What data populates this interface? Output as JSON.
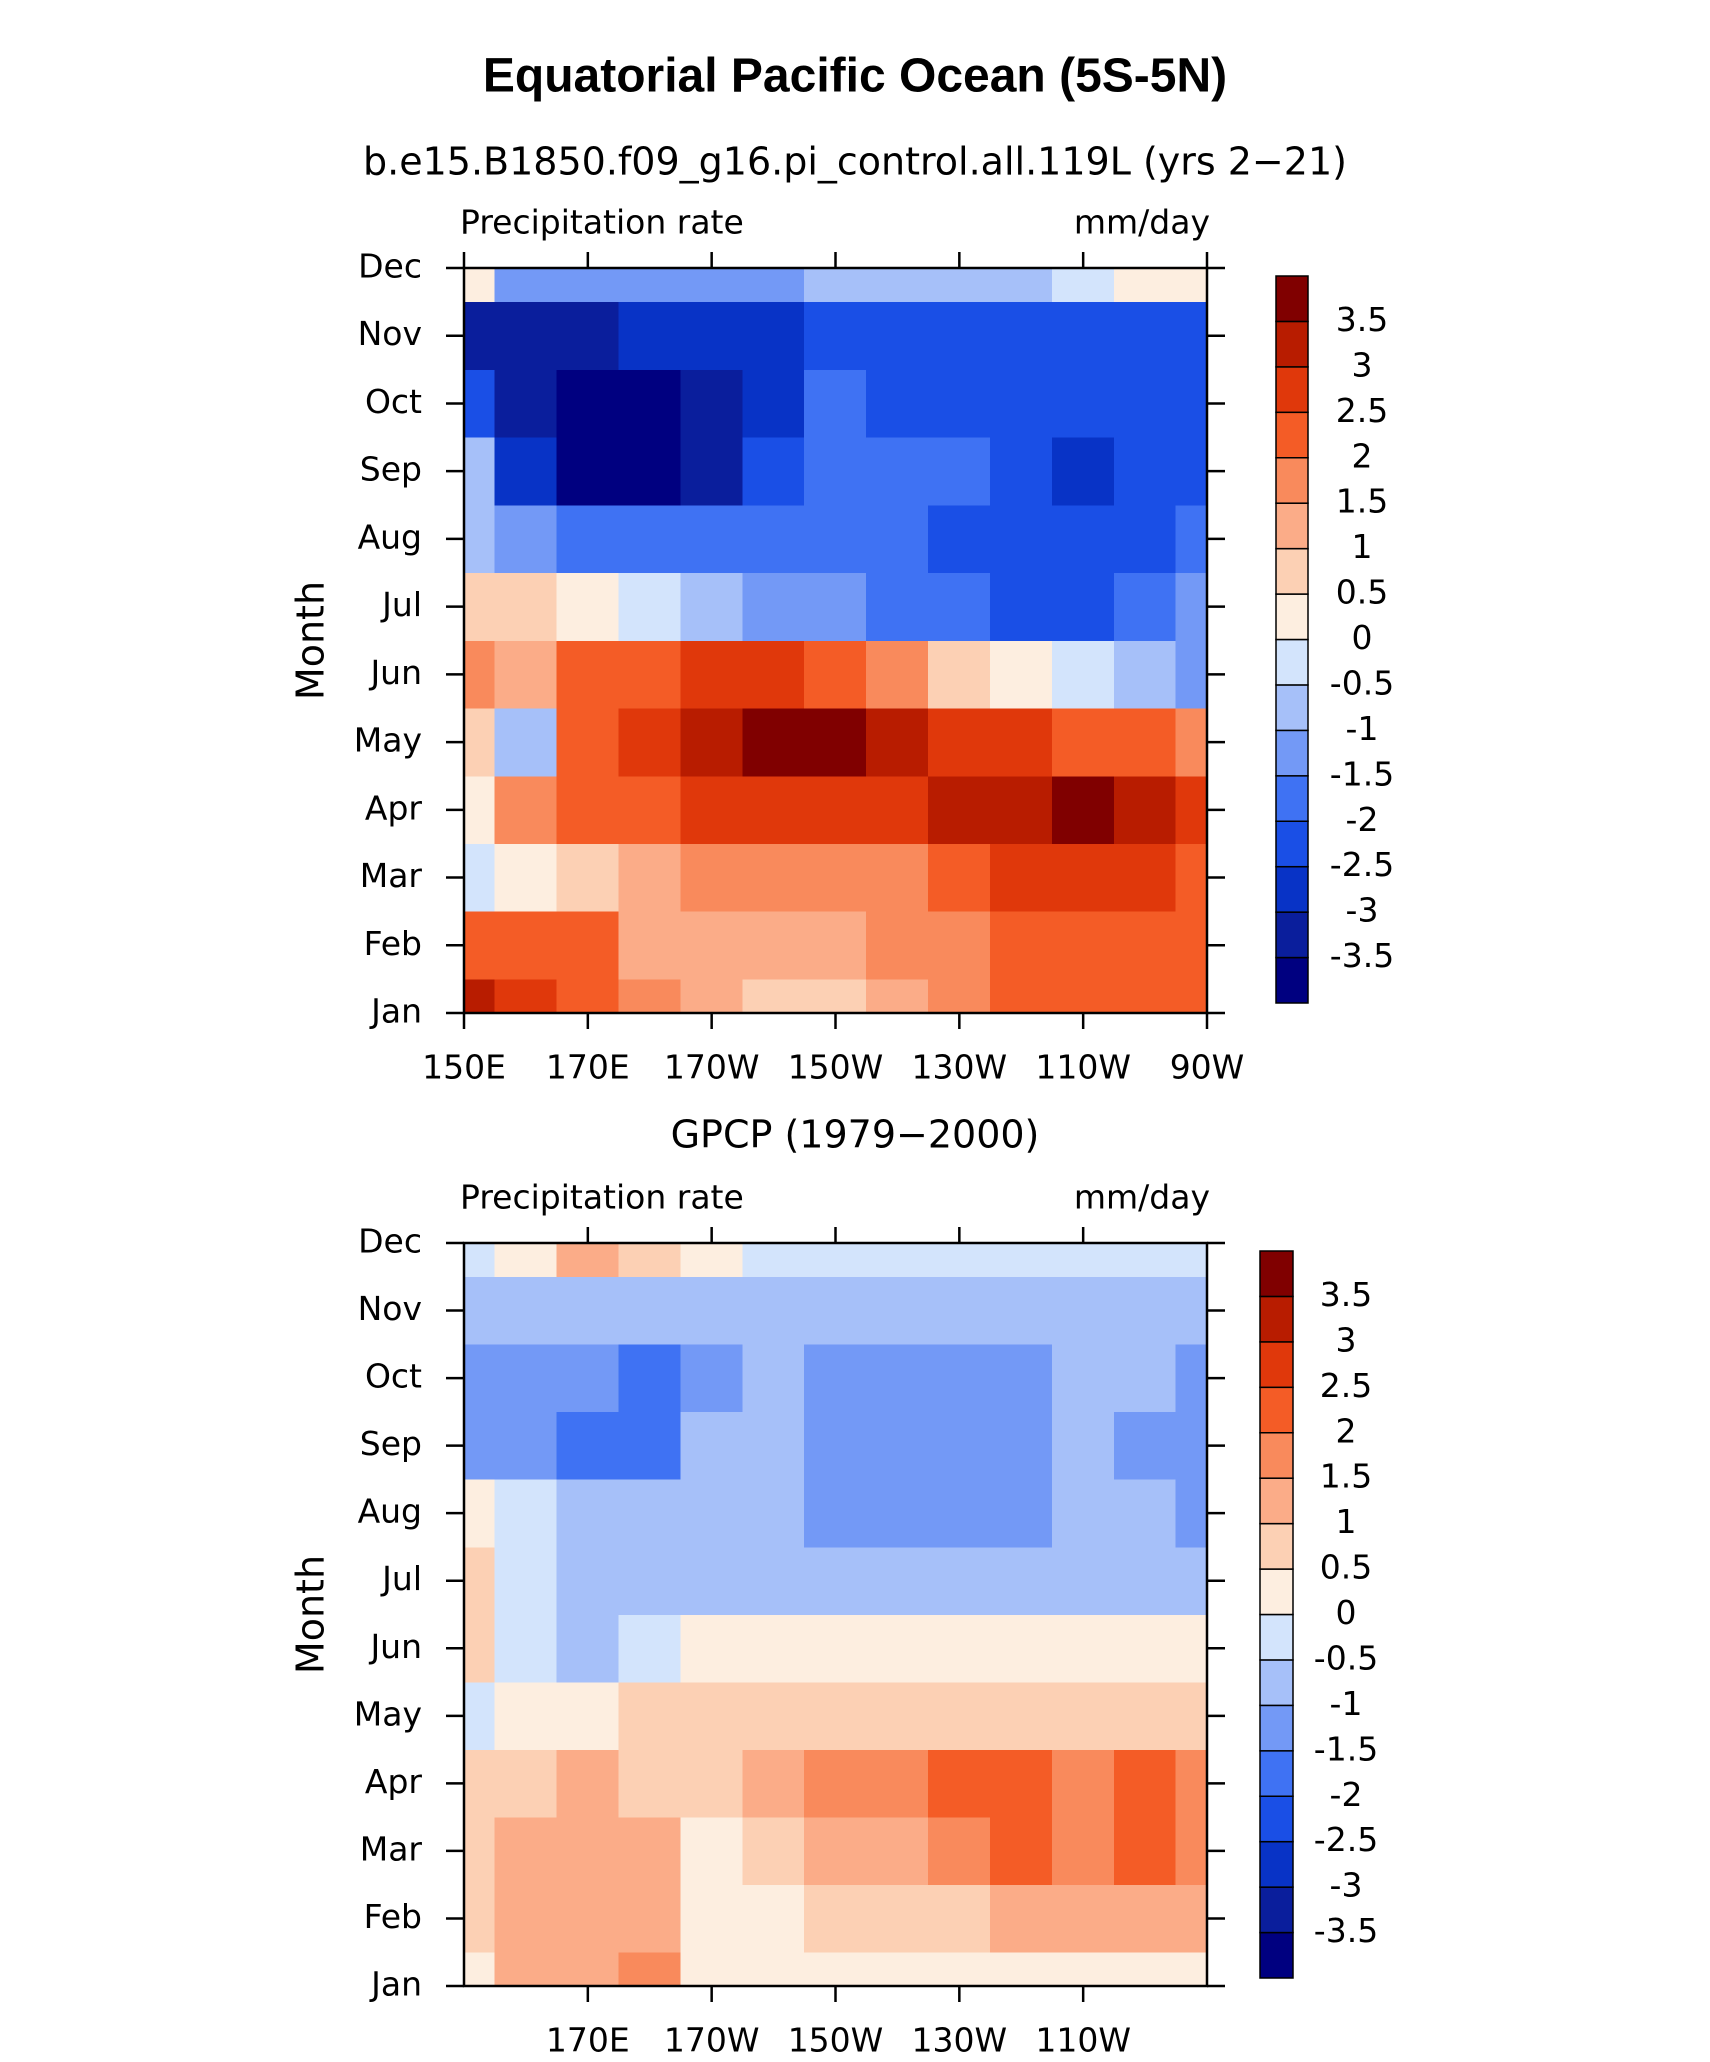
{
  "title": "Equatorial Pacific Ocean (5S-5N)",
  "chart_data": [
    {
      "type": "contour",
      "title": "b.e15.B1850.f09_g16.pi_control.all.119L (yrs 2−21)",
      "left_label": "Precipitation rate",
      "right_label": "mm/day",
      "ylabel": "Month",
      "x": [
        150,
        160,
        170,
        180,
        190,
        200,
        210,
        220,
        230,
        240,
        250,
        260,
        270
      ],
      "y": [
        "Jan",
        "Feb",
        "Mar",
        "Apr",
        "May",
        "Jun",
        "Jul",
        "Aug",
        "Sep",
        "Oct",
        "Nov",
        "Dec"
      ],
      "xlim": [
        150,
        270
      ],
      "xticks": [
        {
          "value": 150,
          "label": "150E"
        },
        {
          "value": 170,
          "label": "170E"
        },
        {
          "value": 190,
          "label": "170W"
        },
        {
          "value": 210,
          "label": "150W"
        },
        {
          "value": 230,
          "label": "130W"
        },
        {
          "value": 250,
          "label": "110W"
        },
        {
          "value": 270,
          "label": "90W"
        }
      ],
      "levels": [
        -3.5,
        -3,
        -2.5,
        -2,
        -1.5,
        -1,
        -0.5,
        0,
        0.5,
        1,
        1.5,
        2,
        2.5,
        3,
        3.5
      ],
      "colors": [
        "#000080",
        "#0a1e9c",
        "#0833c6",
        "#1a4fe6",
        "#3f72f3",
        "#7399f6",
        "#a6c0f9",
        "#d3e4fc",
        "#fdeee0",
        "#fcd0b4",
        "#fbac88",
        "#f98a5c",
        "#f45c26",
        "#e0380b",
        "#b81c00",
        "#800000"
      ],
      "z": [
        [
          3,
          2.5,
          2,
          1.5,
          1,
          0.7,
          0.7,
          1.2,
          1.5,
          2,
          2.2,
          2,
          2
        ],
        [
          2.3,
          2.2,
          2,
          1.3,
          1.2,
          1.3,
          1.4,
          1.5,
          1.8,
          2,
          2.2,
          2.2,
          2.2
        ],
        [
          -0.3,
          0.3,
          0.5,
          1.2,
          1.5,
          1.5,
          1.8,
          1.6,
          2.2,
          2.5,
          2.6,
          2.5,
          2.3
        ],
        [
          0.2,
          1.6,
          2.2,
          2.4,
          2.6,
          2.6,
          2.6,
          2.7,
          3,
          3.4,
          3.7,
          3.2,
          2.5
        ],
        [
          0.5,
          -0.6,
          2.2,
          2.8,
          3.2,
          3.5,
          3.7,
          3.2,
          2.7,
          2.5,
          2.3,
          2,
          1.5
        ],
        [
          1.5,
          1.2,
          2,
          2.2,
          2.8,
          2.5,
          2.2,
          1.5,
          0.8,
          0.2,
          -0.3,
          -0.8,
          -1.2
        ],
        [
          0.6,
          0.5,
          0.3,
          -0.3,
          -0.8,
          -1.2,
          -1.4,
          -1.8,
          -2,
          -2.2,
          -2.2,
          -2,
          -1.5
        ],
        [
          -0.8,
          -1.2,
          -1.8,
          -1.9,
          -2,
          -2,
          -2,
          -2,
          -2.1,
          -2.1,
          -2.4,
          -2.2,
          -2
        ],
        [
          -1,
          -3,
          -3.6,
          -3.6,
          -3.2,
          -2.5,
          -2,
          -2,
          -2,
          -2.5,
          -2.6,
          -2.1,
          -2.2
        ],
        [
          -2.5,
          -3.2,
          -3.7,
          -3.8,
          -3.1,
          -2.6,
          -2,
          -2.1,
          -2.2,
          -2.2,
          -2.2,
          -2.2,
          -2.5
        ],
        [
          -3.2,
          -3.1,
          -3.1,
          -3,
          -2.8,
          -2.6,
          -2.2,
          -2.2,
          -2.2,
          -2.2,
          -2.2,
          -2.2,
          -2.1
        ],
        [
          0.3,
          -1.2,
          -1.5,
          -1.5,
          -1.3,
          -1.2,
          -1,
          -0.8,
          -0.8,
          -0.7,
          -0.3,
          0.2,
          0.3
        ]
      ]
    },
    {
      "type": "contour",
      "title": "GPCP (1979−2000)",
      "left_label": "Precipitation rate",
      "right_label": "mm/day",
      "ylabel": "Month",
      "x": [
        150,
        160,
        170,
        180,
        190,
        200,
        210,
        220,
        230,
        240,
        250,
        260,
        270
      ],
      "y": [
        "Jan",
        "Feb",
        "Mar",
        "Apr",
        "May",
        "Jun",
        "Jul",
        "Aug",
        "Sep",
        "Oct",
        "Nov",
        "Dec"
      ],
      "xlim": [
        150,
        270
      ],
      "xticks": [
        {
          "value": 170,
          "label": "170E"
        },
        {
          "value": 190,
          "label": "170W"
        },
        {
          "value": 210,
          "label": "150W"
        },
        {
          "value": 230,
          "label": "130W"
        },
        {
          "value": 250,
          "label": "110W"
        }
      ],
      "levels": [
        -3.5,
        -3,
        -2.5,
        -2,
        -1.5,
        -1,
        -0.5,
        0,
        0.5,
        1,
        1.5,
        2,
        2.5,
        3,
        3.5
      ],
      "colors": [
        "#000080",
        "#0a1e9c",
        "#0833c6",
        "#1a4fe6",
        "#3f72f3",
        "#7399f6",
        "#a6c0f9",
        "#d3e4fc",
        "#fdeee0",
        "#fcd0b4",
        "#fbac88",
        "#f98a5c",
        "#f45c26",
        "#e0380b",
        "#b81c00",
        "#800000"
      ],
      "z": [
        [
          0.3,
          1,
          1.3,
          1.8,
          0.4,
          0.2,
          0.1,
          0.2,
          0.2,
          0.3,
          0.3,
          0.2,
          0.3
        ],
        [
          0.8,
          1.3,
          1.3,
          1.2,
          0.3,
          0.3,
          0.6,
          0.7,
          0.8,
          1,
          1.1,
          1.2,
          1.3
        ],
        [
          0.6,
          1.4,
          1.2,
          1.2,
          0.4,
          0.8,
          1.2,
          1.4,
          1.6,
          2,
          1.5,
          2,
          1.5
        ],
        [
          0.5,
          0.8,
          1.2,
          0.8,
          0.9,
          1.3,
          1.6,
          1.7,
          2,
          2.1,
          1.8,
          2,
          1.5
        ],
        [
          -0.3,
          0.3,
          0.4,
          0.5,
          0.7,
          0.8,
          0.9,
          0.9,
          0.9,
          0.9,
          0.8,
          0.7,
          0.6
        ],
        [
          0.6,
          -0.3,
          -0.7,
          -0.4,
          0.2,
          0.4,
          0.3,
          0.2,
          0.1,
          0.1,
          0.1,
          0.1,
          0.1
        ],
        [
          0.6,
          -0.5,
          -0.8,
          -0.9,
          -0.7,
          -0.6,
          -0.8,
          -0.8,
          -0.8,
          -0.7,
          -0.6,
          -0.8,
          -0.7
        ],
        [
          0.3,
          -0.3,
          -0.9,
          -0.9,
          -0.9,
          -0.9,
          -1.1,
          -1.2,
          -1.2,
          -1.2,
          -0.9,
          -0.9,
          -1.1
        ],
        [
          -1.2,
          -1.2,
          -1.7,
          -1.6,
          -0.9,
          -1,
          -1.3,
          -1.3,
          -1.3,
          -1.1,
          -0.8,
          -1.2,
          -1.3
        ],
        [
          -1.1,
          -1.1,
          -1.4,
          -1.6,
          -1.2,
          -0.9,
          -1.2,
          -1.3,
          -1.2,
          -1.1,
          -0.9,
          -0.9,
          -1.2
        ],
        [
          -1,
          -0.9,
          -0.8,
          -0.9,
          -0.8,
          -0.8,
          -0.7,
          -0.8,
          -0.8,
          -0.8,
          -0.8,
          -0.8,
          -0.9
        ],
        [
          -0.3,
          0.4,
          1.2,
          0.8,
          0.2,
          -0.2,
          -0.4,
          -0.5,
          -0.5,
          -0.5,
          -0.5,
          -0.5,
          -0.5
        ]
      ]
    }
  ]
}
